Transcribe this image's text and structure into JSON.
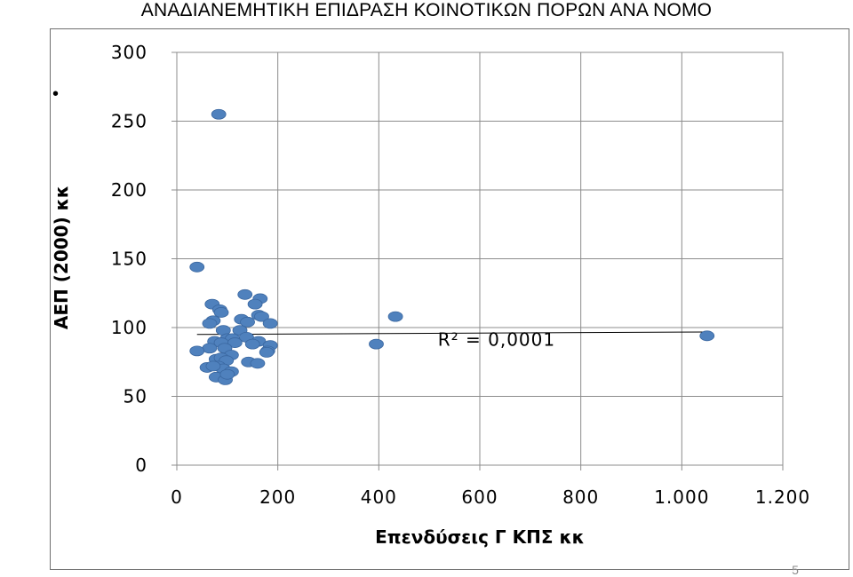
{
  "slide": {
    "title": "ΑΝΑΔΙΑΝΕΜΗΤΙΚΗ ΕΠΙΔΡΑΣΗ ΚΟΙΝΟΤΙΚΩΝ ΠΟΡΩΝ ΑΝΑ ΝΟΜΟ",
    "bullet": "•",
    "page_number": "5"
  },
  "chart_data": {
    "type": "scatter",
    "title": "",
    "xlabel": "Επενδύσεις Γ ΚΠΣ κκ",
    "ylabel": "ΑΕΠ (2000) κκ",
    "xlim": [
      0,
      1200
    ],
    "ylim": [
      0,
      300
    ],
    "x_ticks": [
      0,
      200,
      400,
      600,
      800,
      1000,
      1200
    ],
    "x_tick_labels": [
      "0",
      "200",
      "400",
      "600",
      "800",
      "1.000",
      "1.200"
    ],
    "y_ticks": [
      0,
      50,
      100,
      150,
      200,
      250,
      300
    ],
    "y_tick_labels": [
      "0",
      "50",
      "100",
      "150",
      "200",
      "250",
      "300"
    ],
    "grid": true,
    "point_color": "#4f81bd",
    "point_edge_color": "#3a67a0",
    "grid_color": "#8c8c8c",
    "series": [
      {
        "points": [
          [
            83,
            255
          ],
          [
            40,
            144
          ],
          [
            433,
            108
          ],
          [
            395,
            88
          ],
          [
            1050,
            94
          ],
          [
            135,
            124
          ],
          [
            165,
            121
          ],
          [
            155,
            117
          ],
          [
            70,
            117
          ],
          [
            85,
            113
          ],
          [
            88,
            111
          ],
          [
            162,
            109
          ],
          [
            168,
            108
          ],
          [
            72,
            105
          ],
          [
            128,
            106
          ],
          [
            185,
            103
          ],
          [
            65,
            103
          ],
          [
            140,
            104
          ],
          [
            92,
            98
          ],
          [
            125,
            98
          ],
          [
            100,
            92
          ],
          [
            110,
            92
          ],
          [
            138,
            93
          ],
          [
            162,
            90
          ],
          [
            75,
            90
          ],
          [
            88,
            89
          ],
          [
            115,
            89
          ],
          [
            150,
            88
          ],
          [
            185,
            87
          ],
          [
            95,
            85
          ],
          [
            65,
            85
          ],
          [
            40,
            83
          ],
          [
            180,
            83
          ],
          [
            178,
            82
          ],
          [
            108,
            80
          ],
          [
            78,
            77
          ],
          [
            88,
            78
          ],
          [
            98,
            76
          ],
          [
            142,
            75
          ],
          [
            160,
            74
          ],
          [
            82,
            72
          ],
          [
            60,
            71
          ],
          [
            92,
            70
          ],
          [
            108,
            68
          ],
          [
            78,
            64
          ],
          [
            96,
            62
          ],
          [
            72,
            72
          ],
          [
            100,
            66
          ]
        ]
      }
    ],
    "trendline": {
      "x": [
        40,
        1050
      ],
      "y": [
        95,
        96.8
      ],
      "label": "R² = 0,0001",
      "label_x": 728,
      "label_y": 99,
      "color": "#000000"
    }
  }
}
